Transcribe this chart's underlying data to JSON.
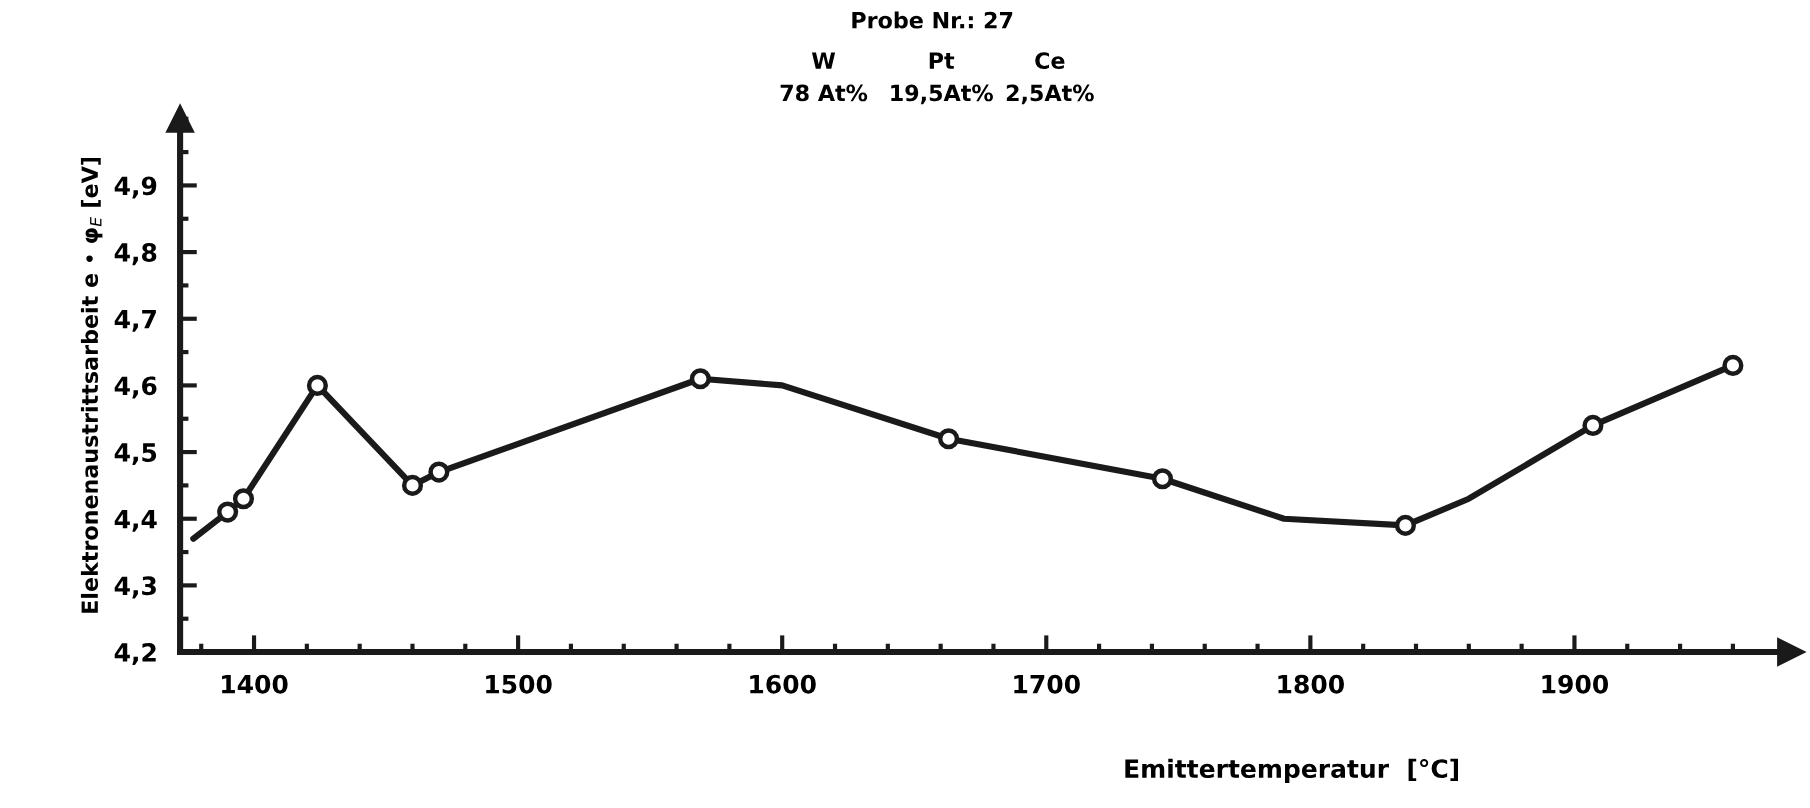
{
  "chart_data": {
    "type": "line",
    "title": "Probe Nr.: 27",
    "annotations": [
      "W",
      "Pt",
      "Ce",
      "78 At%",
      "19,5At%",
      "2,5At%"
    ],
    "xlabel": "Emittertemperatur  [°C]",
    "ylabel": "Elektronenaustrittsarbeit e • φ$_{E}$ [eV]",
    "series": [
      {
        "color": "#1a1a1a",
        "marker": "none",
        "x": [
          1377,
          1390,
          1396,
          1424,
          1460,
          1470,
          1569,
          1600,
          1663,
          1744,
          1790,
          1836,
          1860,
          1907,
          1960
        ],
        "values": [
          4.37,
          4.41,
          4.43,
          4.6,
          4.45,
          4.47,
          4.61,
          4.6,
          4.52,
          4.46,
          4.4,
          4.39,
          4.43,
          4.54,
          4.63
        ]
      },
      {
        "type": "scatter",
        "color": "#1a1a1a",
        "marker": "circle",
        "x": [
          1390,
          1396,
          1424,
          1460,
          1470,
          1569,
          1663,
          1744,
          1836,
          1907,
          1960
        ],
        "values": [
          4.41,
          4.43,
          4.6,
          4.45,
          4.47,
          4.61,
          4.52,
          4.46,
          4.39,
          4.54,
          4.63
        ]
      }
    ],
    "xlim": [
      1372,
      1982
    ],
    "ylim": [
      4.2,
      5.0
    ],
    "xticks": [
      1400,
      1500,
      1600,
      1700,
      1800,
      1900
    ],
    "yticks": [
      {
        "value": 4.2,
        "label": "4,2"
      },
      {
        "value": 4.3,
        "label": "4,3"
      },
      {
        "value": 4.4,
        "label": "4,4"
      },
      {
        "value": 4.5,
        "label": "4,5"
      },
      {
        "value": 4.6,
        "label": "4,6"
      },
      {
        "value": 4.7,
        "label": "4,7"
      },
      {
        "value": 4.8,
        "label": "4,8"
      },
      {
        "value": 4.9,
        "label": "4,9"
      }
    ],
    "grid": false,
    "legend": false
  }
}
